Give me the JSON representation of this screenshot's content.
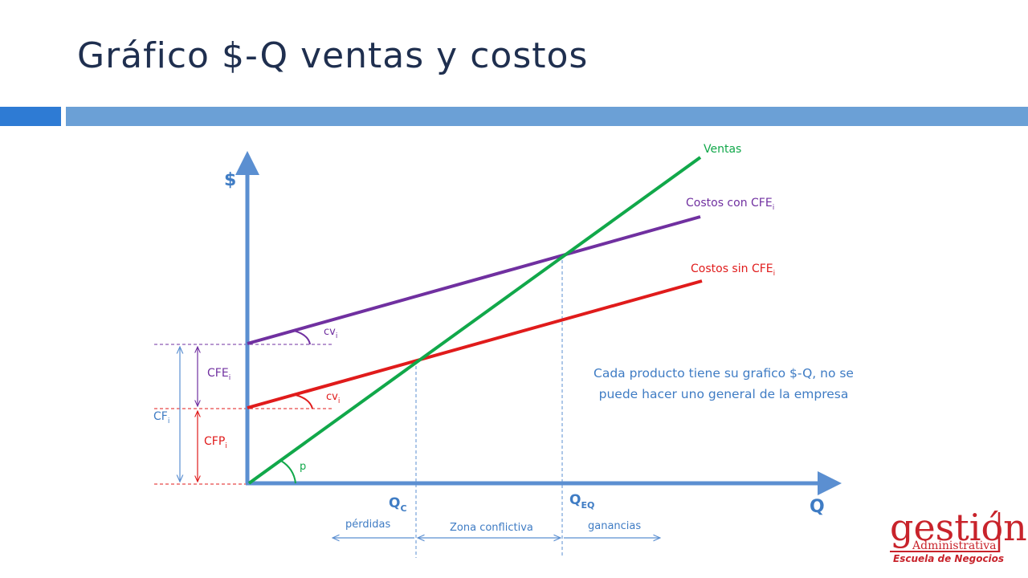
{
  "slide": {
    "title": "Gráfico $-Q ventas y costos"
  },
  "colors": {
    "ventas": "#11a84a",
    "costos_con": "#7030a0",
    "costos_sin": "#e01b1b",
    "axis": "#5b8fd1",
    "text_blue": "#3f7cc4",
    "title": "#1f2f4f",
    "logo": "#c8232b"
  },
  "diagram": {
    "axis_y": "$",
    "axis_x": "Q",
    "lines": {
      "ventas": "Ventas",
      "costos_con": {
        "base": "Costos con CFE",
        "sub": "i"
      },
      "costos_sin": {
        "base": "Costos sin CFE",
        "sub": "i"
      }
    },
    "angles": {
      "cv_upper": {
        "base": "cv",
        "sub": "i"
      },
      "cv_lower": {
        "base": "cv",
        "sub": "i"
      },
      "p": "p"
    },
    "left_labels": {
      "cfe": {
        "base": "CFE",
        "sub": "i"
      },
      "cfp": {
        "base": "CFP",
        "sub": "i"
      },
      "cf": {
        "base": "CF",
        "sub": "i"
      }
    },
    "q_points": {
      "qc": {
        "base": "Q",
        "sub": "C"
      },
      "qeq": {
        "base": "Q",
        "sub": "EQ"
      }
    },
    "zones": {
      "perdidas": "pérdidas",
      "conflictiva": "Zona conflictiva",
      "ganancias": "ganancias"
    },
    "note": [
      "Cada producto tiene su grafico $-Q, no se",
      "puede hacer uno general de la empresa"
    ]
  },
  "logo": {
    "main": "gestión",
    "sub": "Administrativa",
    "tagline": "Escuela de Negocios"
  }
}
